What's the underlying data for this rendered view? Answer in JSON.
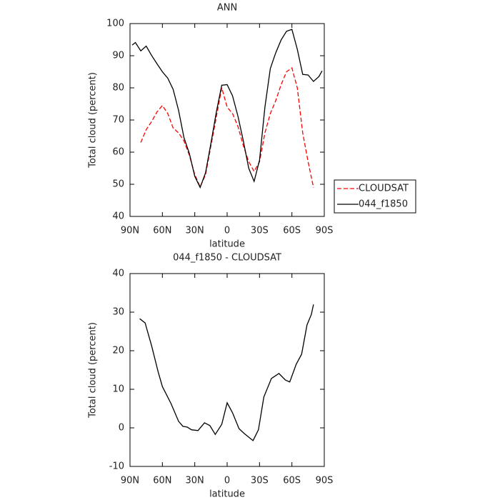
{
  "chart_data": [
    {
      "type": "line",
      "title": "ANN",
      "xlabel": "latitude",
      "ylabel": "Total cloud (percent)",
      "x": [
        88,
        85,
        80,
        75,
        70,
        65,
        60,
        55,
        50,
        45,
        40,
        35,
        30,
        25,
        20,
        15,
        10,
        5,
        0,
        -5,
        -10,
        -15,
        -20,
        -25,
        -30,
        -35,
        -40,
        -45,
        -50,
        -55,
        -60,
        -65,
        -70,
        -75,
        -80,
        -85,
        -88
      ],
      "series": [
        {
          "name": "CLOUDSAT",
          "color": "#ff0000",
          "dash": true,
          "values": [
            null,
            null,
            63,
            67,
            69.5,
            72.5,
            74.5,
            72,
            67.5,
            66,
            63.5,
            59,
            53,
            49.2,
            53,
            62,
            71,
            80,
            74,
            72,
            68,
            62,
            57,
            54,
            57,
            66,
            72,
            76,
            81,
            85,
            86.2,
            80,
            66,
            57,
            49,
            null,
            null
          ]
        },
        {
          "name": "044_f1850",
          "color": "#000000",
          "dash": false,
          "values": [
            93.3,
            94.1,
            91.5,
            93.0,
            90.1,
            87.5,
            85.0,
            83.0,
            79.5,
            73.0,
            64.5,
            59.6,
            52.5,
            49.0,
            53.6,
            62.8,
            72.5,
            80.8,
            81.0,
            77.5,
            71.2,
            63.5,
            55.0,
            50.9,
            57.5,
            74.0,
            86.0,
            90.9,
            94.9,
            97.6,
            98.2,
            92.0,
            84.2,
            84.0,
            82.0,
            83.5,
            85.3
          ]
        }
      ],
      "xlim": [
        90,
        -90
      ],
      "xticks": [
        {
          "value": 90,
          "label": "90N"
        },
        {
          "value": 60,
          "label": "60N"
        },
        {
          "value": 30,
          "label": "30N"
        },
        0,
        {
          "value": -30,
          "label": "30S"
        },
        {
          "value": -60,
          "label": "60S"
        },
        {
          "value": -90,
          "label": "90S"
        }
      ],
      "ylim": [
        40,
        100
      ],
      "yticks": [
        40,
        50,
        60,
        70,
        80,
        90,
        100
      ],
      "legend": "right"
    },
    {
      "type": "line",
      "title": "044_f1850 - CLOUDSAT",
      "xlabel": "latitude",
      "ylabel": "Total cloud (percent)",
      "x": [
        81,
        76,
        70,
        64,
        60,
        52,
        45,
        41,
        37,
        33,
        27,
        21,
        16,
        11,
        5,
        0,
        -5,
        -11,
        -16,
        -24,
        -29,
        -34,
        -41,
        -48,
        -54,
        -58,
        -64,
        -69,
        -74,
        -78,
        -80
      ],
      "values": [
        28.3,
        27.2,
        21.3,
        14.6,
        10.7,
        6.3,
        1.7,
        0.4,
        0.2,
        -0.5,
        -0.7,
        1.3,
        0.6,
        -1.7,
        0.9,
        6.5,
        3.9,
        -0.2,
        -1.5,
        -3.3,
        -0.5,
        8,
        12.8,
        14.1,
        12.4,
        11.9,
        16.5,
        19.1,
        26.7,
        29.4,
        32
      ],
      "color": "#000000",
      "xlim": [
        90,
        -90
      ],
      "xticks": [
        {
          "value": 90,
          "label": "90N"
        },
        {
          "value": 60,
          "label": "60N"
        },
        {
          "value": 30,
          "label": "30N"
        },
        0,
        {
          "value": -30,
          "label": "30S"
        },
        {
          "value": -60,
          "label": "60S"
        },
        {
          "value": -90,
          "label": "90S"
        }
      ],
      "ylim": [
        -10,
        40
      ],
      "yticks": [
        -10,
        0,
        10,
        20,
        30,
        40
      ]
    }
  ]
}
